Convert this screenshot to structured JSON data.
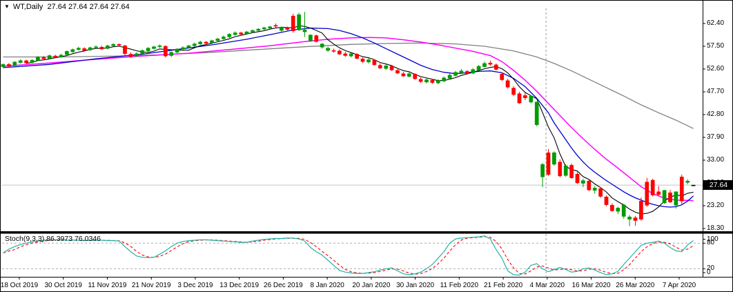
{
  "window": {
    "bg": "#FFFFFF",
    "border_color": "#000000"
  },
  "header": {
    "dropdown_icon": "▼",
    "symbol": "WT,Daily",
    "ohlc_text": "27.64 27.64 27.64 27.64"
  },
  "price_axis": {
    "labels": [
      "62.40",
      "57.50",
      "52.60",
      "47.70",
      "42.80",
      "37.90",
      "33.00",
      "28.10",
      "23.20",
      "18.30"
    ],
    "current_price": "27.64",
    "badge_bg": "#000000",
    "badge_text_color": "#FFFFFF"
  },
  "date_axis": {
    "labels": [
      "18 Oct 2019",
      "30 Oct 2019",
      "11 Nov 2019",
      "21 Nov 2019",
      "3 Dec 2019",
      "13 Dec 2019",
      "26 Dec 2019",
      "8 Jan 2020",
      "20 Jan 2020",
      "30 Jan 2020",
      "11 Feb 2020",
      "21 Feb 2020",
      "4 Mar 2020",
      "16 Mar 2020",
      "26 Mar 2020",
      "7 Apr 2020"
    ]
  },
  "stoch_panel": {
    "indicator_name": "Stoch(9,3,3)",
    "k_value": "86.3973",
    "d_value": "76.0346",
    "axis_labels": [
      "100",
      "80",
      "20",
      "0"
    ]
  },
  "chart_data": {
    "type": "candlestick",
    "title": "WT,Daily",
    "last_price": 27.64,
    "y_ticks": [
      62.4,
      57.5,
      52.6,
      47.7,
      42.8,
      37.9,
      33.0,
      28.1,
      23.2,
      18.3
    ],
    "ylim": [
      17.0,
      65.5
    ],
    "x_tick_labels": [
      "18 Oct 2019",
      "30 Oct 2019",
      "11 Nov 2019",
      "21 Nov 2019",
      "3 Dec 2019",
      "13 Dec 2019",
      "26 Dec 2019",
      "8 Jan 2020",
      "20 Jan 2020",
      "30 Jan 2020",
      "11 Feb 2020",
      "21 Feb 2020",
      "4 Mar 2020",
      "16 Mar 2020",
      "26 Mar 2020",
      "7 Apr 2020"
    ],
    "grid": false,
    "candle_colors": {
      "up": "#009B00",
      "down": "#FF0000",
      "neutral": "#000000"
    },
    "price_line_color": "#C4C4C4",
    "candles": [
      [
        53.1,
        53.8,
        52.9,
        53.6
      ],
      [
        53.6,
        53.9,
        53.0,
        53.2
      ],
      [
        53.3,
        54.3,
        53.2,
        54.1
      ],
      [
        54.0,
        54.7,
        53.8,
        54.4
      ],
      [
        54.4,
        54.6,
        53.6,
        53.9
      ],
      [
        54.0,
        54.7,
        53.8,
        54.5
      ],
      [
        54.5,
        55.4,
        54.3,
        55.2
      ],
      [
        55.1,
        55.4,
        54.5,
        54.8
      ],
      [
        54.9,
        55.7,
        54.7,
        55.5
      ],
      [
        55.4,
        55.7,
        54.9,
        55.2
      ],
      [
        55.2,
        55.9,
        55.0,
        55.6
      ],
      [
        55.7,
        56.6,
        55.5,
        56.4
      ],
      [
        56.3,
        57.0,
        56.1,
        56.8
      ],
      [
        56.8,
        57.4,
        56.6,
        57.1
      ],
      [
        57.0,
        57.3,
        56.3,
        56.6
      ],
      [
        56.7,
        57.4,
        56.5,
        57.2
      ],
      [
        57.2,
        57.7,
        57.0,
        57.4
      ],
      [
        57.3,
        57.6,
        56.7,
        56.9
      ],
      [
        57.0,
        57.8,
        56.8,
        57.6
      ],
      [
        57.6,
        58.2,
        57.4,
        57.9
      ],
      [
        57.9,
        58.1,
        57.4,
        57.7
      ],
      [
        57.6,
        57.8,
        55.5,
        55.9
      ],
      [
        55.8,
        56.2,
        55.0,
        55.3
      ],
      [
        55.4,
        56.2,
        55.2,
        55.9
      ],
      [
        55.9,
        56.8,
        55.7,
        56.6
      ],
      [
        56.5,
        57.3,
        56.3,
        57.1
      ],
      [
        57.0,
        57.6,
        56.8,
        57.4
      ],
      [
        57.4,
        57.9,
        57.1,
        57.6
      ],
      [
        57.5,
        57.7,
        55.1,
        55.4
      ],
      [
        55.5,
        56.4,
        55.2,
        56.2
      ],
      [
        56.2,
        57.1,
        56.0,
        56.9
      ],
      [
        56.9,
        57.5,
        56.7,
        57.2
      ],
      [
        57.2,
        57.8,
        57.0,
        57.6
      ],
      [
        57.6,
        58.3,
        57.4,
        58.0
      ],
      [
        58.0,
        58.7,
        57.8,
        58.4
      ],
      [
        58.4,
        58.6,
        57.8,
        58.1
      ],
      [
        58.2,
        58.9,
        58.0,
        58.7
      ],
      [
        58.7,
        59.3,
        58.5,
        59.1
      ],
      [
        59.1,
        59.8,
        58.9,
        59.5
      ],
      [
        59.5,
        60.3,
        59.3,
        60.1
      ],
      [
        60.0,
        60.7,
        59.8,
        60.4
      ],
      [
        60.4,
        60.6,
        59.8,
        60.1
      ],
      [
        60.2,
        60.8,
        60.0,
        60.6
      ],
      [
        60.6,
        61.1,
        60.4,
        60.9
      ],
      [
        60.9,
        61.4,
        60.7,
        61.2
      ],
      [
        61.2,
        61.7,
        61.0,
        61.5
      ],
      [
        61.4,
        61.9,
        61.2,
        61.7
      ],
      [
        62.0,
        62.4,
        61.4,
        61.8
      ],
      [
        60.9,
        61.8,
        60.6,
        61.6
      ],
      [
        61.5,
        61.7,
        60.9,
        61.1
      ],
      [
        64.0,
        64.5,
        60.4,
        60.8
      ],
      [
        61.0,
        64.7,
        60.8,
        64.3
      ],
      [
        60.6,
        64.9,
        59.5,
        61.0
      ],
      [
        58.7,
        60.1,
        58.4,
        59.9
      ],
      [
        59.8,
        60.0,
        58.3,
        58.5
      ],
      [
        57.3,
        58.2,
        57.0,
        58.0
      ],
      [
        56.6,
        57.4,
        56.3,
        57.1
      ],
      [
        56.6,
        57.0,
        56.1,
        56.4
      ],
      [
        56.5,
        56.8,
        55.6,
        55.8
      ],
      [
        55.9,
        56.3,
        55.2,
        55.5
      ],
      [
        55.4,
        56.1,
        55.1,
        55.9
      ],
      [
        55.8,
        56.0,
        54.7,
        54.9
      ],
      [
        54.8,
        55.1,
        53.9,
        54.2
      ],
      [
        54.1,
        54.9,
        53.8,
        54.6
      ],
      [
        54.5,
        54.7,
        53.3,
        53.5
      ],
      [
        53.4,
        53.8,
        52.6,
        52.8
      ],
      [
        52.7,
        53.6,
        52.4,
        53.3
      ],
      [
        53.2,
        53.5,
        52.2,
        52.4
      ],
      [
        52.3,
        52.6,
        51.5,
        51.7
      ],
      [
        51.6,
        52.0,
        50.9,
        51.1
      ],
      [
        51.0,
        51.9,
        50.8,
        51.6
      ],
      [
        51.5,
        51.7,
        50.3,
        50.5
      ],
      [
        50.4,
        50.8,
        49.6,
        49.9
      ],
      [
        49.8,
        50.6,
        49.5,
        50.3
      ],
      [
        50.2,
        50.5,
        49.4,
        49.7
      ],
      [
        49.6,
        50.4,
        49.3,
        50.1
      ],
      [
        50.0,
        51.0,
        49.8,
        50.7
      ],
      [
        50.6,
        51.6,
        50.4,
        51.3
      ],
      [
        51.2,
        52.2,
        51.0,
        51.9
      ],
      [
        51.8,
        52.6,
        51.5,
        52.2
      ],
      [
        52.1,
        52.4,
        51.4,
        51.6
      ],
      [
        51.7,
        52.8,
        51.5,
        52.5
      ],
      [
        52.4,
        53.5,
        52.2,
        53.2
      ],
      [
        53.1,
        54.2,
        52.9,
        53.8
      ],
      [
        53.9,
        54.4,
        53.3,
        53.6
      ],
      [
        53.5,
        53.8,
        52.3,
        52.5
      ],
      [
        51.5,
        51.9,
        50.0,
        50.3
      ],
      [
        50.1,
        50.5,
        48.4,
        48.7
      ],
      [
        48.5,
        48.9,
        46.8,
        47.1
      ],
      [
        47.3,
        47.7,
        45.1,
        45.3
      ],
      [
        46.9,
        47.5,
        45.9,
        46.4
      ],
      [
        45.5,
        47.0,
        45.2,
        46.8
      ],
      [
        40.6,
        45.6,
        40.3,
        45.5
      ],
      [
        29.4,
        32.4,
        27.2,
        32.1
      ],
      [
        34.6,
        35.4,
        29.6,
        29.9
      ],
      [
        32.1,
        34.9,
        31.8,
        34.6
      ],
      [
        32.6,
        33.2,
        29.3,
        29.6
      ],
      [
        29.7,
        32.1,
        29.4,
        31.8
      ],
      [
        31.9,
        32.3,
        29.0,
        29.2
      ],
      [
        30.0,
        30.4,
        27.9,
        28.1
      ],
      [
        28.0,
        29.0,
        27.2,
        28.6
      ],
      [
        28.5,
        28.9,
        26.3,
        26.6
      ],
      [
        26.5,
        27.4,
        25.8,
        27.0
      ],
      [
        26.9,
        27.2,
        24.9,
        25.2
      ],
      [
        25.1,
        25.4,
        23.1,
        23.4
      ],
      [
        23.3,
        23.7,
        21.9,
        22.1
      ],
      [
        22.0,
        23.0,
        21.4,
        22.7
      ],
      [
        20.9,
        23.6,
        20.4,
        23.4
      ],
      [
        20.3,
        21.2,
        18.8,
        20.8
      ],
      [
        20.6,
        21.0,
        18.9,
        20.0
      ],
      [
        24.2,
        25.0,
        20.0,
        20.3
      ],
      [
        28.3,
        29.2,
        23.0,
        23.3
      ],
      [
        28.7,
        29.0,
        25.2,
        25.5
      ],
      [
        26.2,
        27.4,
        25.3,
        25.6
      ],
      [
        23.8,
        26.6,
        23.6,
        26.5
      ],
      [
        26.0,
        26.6,
        23.8,
        24.0
      ],
      [
        23.3,
        26.3,
        22.6,
        26.2
      ],
      [
        29.4,
        29.9,
        23.4,
        24.2
      ],
      [
        28.2,
        28.9,
        27.8,
        28.5
      ],
      [
        27.64,
        27.64,
        27.64,
        27.64
      ]
    ],
    "overlays": {
      "ma_fast": {
        "name": "ma-fast-black",
        "color": "#000000",
        "type": "sma_of_close",
        "period": 5
      },
      "ma_mid": {
        "name": "ma-mid-blue",
        "color": "#0000CD",
        "points": [
          [
            0,
            52.9
          ],
          [
            8,
            53.6
          ],
          [
            16,
            54.8
          ],
          [
            24,
            55.8
          ],
          [
            30,
            56.8
          ],
          [
            36,
            57.8
          ],
          [
            42,
            59.0
          ],
          [
            46,
            60.0
          ],
          [
            50,
            61.0
          ],
          [
            53,
            61.4
          ],
          [
            56,
            61.3
          ],
          [
            58,
            60.9
          ],
          [
            60,
            60.2
          ],
          [
            62,
            59.3
          ],
          [
            64,
            58.2
          ],
          [
            66,
            57.0
          ],
          [
            68,
            55.8
          ],
          [
            70,
            54.6
          ],
          [
            72,
            53.4
          ],
          [
            74,
            52.5
          ],
          [
            76,
            51.9
          ],
          [
            78,
            51.6
          ],
          [
            80,
            51.8
          ],
          [
            82,
            52.1
          ],
          [
            84,
            52.2
          ],
          [
            86,
            51.8
          ],
          [
            88,
            50.6
          ],
          [
            90,
            48.8
          ],
          [
            92,
            46.3
          ],
          [
            94,
            43.2
          ],
          [
            95,
            41.0
          ],
          [
            96,
            39.2
          ],
          [
            97,
            37.4
          ],
          [
            98,
            35.6
          ],
          [
            99,
            34.0
          ],
          [
            100,
            32.6
          ],
          [
            101,
            31.4
          ],
          [
            102,
            30.4
          ],
          [
            103,
            29.5
          ],
          [
            104,
            28.6
          ],
          [
            105,
            27.8
          ],
          [
            106,
            27.0
          ],
          [
            107,
            26.2
          ],
          [
            108,
            25.5
          ],
          [
            109,
            24.9
          ],
          [
            110,
            24.4
          ],
          [
            111,
            23.9
          ],
          [
            112,
            23.5
          ],
          [
            113,
            23.2
          ],
          [
            114,
            23.0
          ],
          [
            115,
            22.9
          ],
          [
            116,
            23.0
          ],
          [
            117,
            23.4
          ],
          [
            118,
            24.2
          ],
          [
            119,
            25.3
          ]
        ]
      },
      "ma_slow": {
        "name": "ma-slow-magenta",
        "color": "#FF00FF",
        "points": [
          [
            0,
            53.2
          ],
          [
            8,
            53.9
          ],
          [
            16,
            54.7
          ],
          [
            24,
            55.4
          ],
          [
            32,
            56.0
          ],
          [
            40,
            56.9
          ],
          [
            46,
            57.6
          ],
          [
            52,
            58.5
          ],
          [
            56,
            59.0
          ],
          [
            60,
            59.3
          ],
          [
            63,
            59.4
          ],
          [
            66,
            59.3
          ],
          [
            69,
            58.9
          ],
          [
            72,
            58.4
          ],
          [
            75,
            57.8
          ],
          [
            78,
            57.1
          ],
          [
            81,
            56.4
          ],
          [
            84,
            55.5
          ],
          [
            86,
            54.2
          ],
          [
            88,
            52.3
          ],
          [
            90,
            50.2
          ],
          [
            92,
            47.8
          ],
          [
            94,
            45.2
          ],
          [
            96,
            42.6
          ],
          [
            98,
            40.0
          ],
          [
            100,
            37.6
          ],
          [
            102,
            35.3
          ],
          [
            104,
            33.2
          ],
          [
            106,
            31.3
          ],
          [
            108,
            29.3
          ],
          [
            110,
            27.3
          ],
          [
            112,
            25.8
          ],
          [
            114,
            24.8
          ],
          [
            116,
            24.4
          ],
          [
            119,
            24.3
          ]
        ]
      },
      "ma_slowest": {
        "name": "ma-slowest-gray",
        "color": "#808080",
        "points": [
          [
            0,
            55.2
          ],
          [
            10,
            55.2
          ],
          [
            20,
            55.4
          ],
          [
            28,
            55.7
          ],
          [
            36,
            56.2
          ],
          [
            44,
            56.8
          ],
          [
            52,
            57.4
          ],
          [
            60,
            57.9
          ],
          [
            66,
            58.1
          ],
          [
            72,
            58.2
          ],
          [
            78,
            58.0
          ],
          [
            83,
            57.5
          ],
          [
            88,
            56.5
          ],
          [
            92,
            55.2
          ],
          [
            95,
            53.8
          ],
          [
            98,
            52.2
          ],
          [
            101,
            50.4
          ],
          [
            104,
            48.6
          ],
          [
            107,
            46.8
          ],
          [
            110,
            44.9
          ],
          [
            113,
            43.2
          ],
          [
            116,
            41.6
          ],
          [
            119,
            39.8
          ]
        ]
      }
    },
    "annotations": [
      {
        "type": "vline",
        "x_bar": 93.6,
        "style": "dashed",
        "color": "#9A9A9A"
      }
    ],
    "stochastic": {
      "k_color": "#20B2AA",
      "d_color": "#FF0000",
      "levels": [
        80,
        20
      ],
      "ylim": [
        0,
        100
      ],
      "d_smoothing": 3,
      "k": [
        57,
        66,
        72,
        77,
        80,
        83,
        85,
        87,
        88,
        88,
        88,
        87,
        87,
        87,
        86,
        87,
        87,
        87,
        86,
        86,
        85,
        72,
        60,
        50,
        47,
        46,
        47,
        54,
        62,
        72,
        80,
        84,
        86,
        87,
        88,
        88,
        87,
        86,
        85,
        84,
        83,
        82,
        82,
        85,
        87,
        89,
        90,
        91,
        91,
        92,
        92,
        90,
        85,
        70,
        60,
        52,
        40,
        28,
        16,
        12,
        10,
        9,
        9,
        11,
        13,
        17,
        20,
        22,
        15,
        8,
        6,
        8,
        12,
        20,
        30,
        45,
        60,
        80,
        90,
        92,
        93,
        94,
        95,
        97,
        90,
        65,
        45,
        15,
        6,
        5,
        12,
        28,
        32,
        20,
        13,
        18,
        23,
        18,
        12,
        14,
        20,
        22,
        17,
        11,
        6,
        8,
        14,
        30,
        45,
        60,
        75,
        80,
        82,
        85,
        80,
        70,
        62,
        60,
        76,
        86.4
      ]
    }
  }
}
